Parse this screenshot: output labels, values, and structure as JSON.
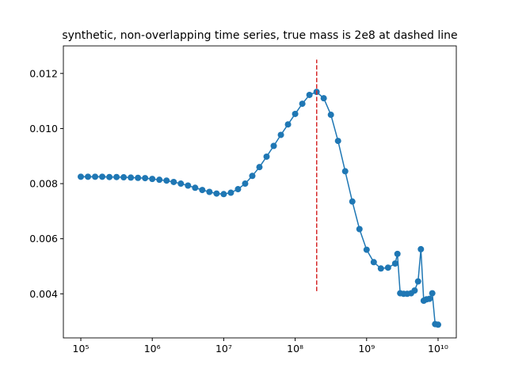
{
  "chart_data": {
    "type": "line",
    "title": "synthetic, non-overlapping time series, true mass is 2e8 at dashed line",
    "x": [
      100000.0,
      125900.0,
      158500.0,
      199500.0,
      251200.0,
      316200.0,
      398100.0,
      501200.0,
      631000.0,
      794300.0,
      1000000.0,
      1259000.0,
      1585000.0,
      1995000.0,
      2512000.0,
      3162000.0,
      3981000.0,
      5012000.0,
      6310000.0,
      7943000.0,
      10000000.0,
      12590000.0,
      15850000.0,
      19950000.0,
      25120000.0,
      31620000.0,
      39810000.0,
      50120000.0,
      63100000.0,
      79430000.0,
      100000000.0,
      125900000.0,
      158500000.0,
      199500000.0,
      251200000.0,
      316200000.0,
      398100000.0,
      501200000.0,
      631000000.0,
      794300000.0,
      1000000000.0,
      1259000000.0,
      1585000000.0,
      1995000000.0,
      2512000000.0,
      2700000000.0,
      2950000000.0,
      3300000000.0,
      3700000000.0,
      4200000000.0,
      4700000000.0,
      5250000000.0,
      5750000000.0,
      6300000000.0,
      6900000000.0,
      7600000000.0,
      8300000000.0,
      9100000000.0,
      10000000000.0
    ],
    "series": [
      {
        "color": "#1f77b4",
        "values": [
          0.00825,
          0.00825,
          0.00825,
          0.00825,
          0.00824,
          0.00824,
          0.00823,
          0.00822,
          0.00821,
          0.0082,
          0.00817,
          0.00814,
          0.00811,
          0.00806,
          0.008,
          0.00793,
          0.00785,
          0.00777,
          0.0077,
          0.00764,
          0.00762,
          0.00767,
          0.0078,
          0.008,
          0.00828,
          0.0086,
          0.00898,
          0.00937,
          0.00977,
          0.01015,
          0.01053,
          0.0109,
          0.01122,
          0.01133,
          0.0111,
          0.0105,
          0.00955,
          0.00845,
          0.00735,
          0.00635,
          0.0056,
          0.00515,
          0.00492,
          0.00495,
          0.0051,
          0.00545,
          0.00402,
          0.004,
          0.004,
          0.00402,
          0.00412,
          0.00445,
          0.00562,
          0.00375,
          0.0038,
          0.00382,
          0.00402,
          0.0029,
          0.00288
        ]
      }
    ],
    "vline": {
      "x": 200000000.0,
      "ymin": 0.0041,
      "ymax": 0.0125,
      "color": "#d62728"
    },
    "xlog": true,
    "xlim": [
      57000,
      18000000000
    ],
    "ylim": [
      0.0024,
      0.013
    ],
    "xticks": [
      {
        "value": 100000.0,
        "label": "10⁵"
      },
      {
        "value": 1000000.0,
        "label": "10⁶"
      },
      {
        "value": 10000000.0,
        "label": "10⁷"
      },
      {
        "value": 100000000.0,
        "label": "10⁸"
      },
      {
        "value": 1000000000.0,
        "label": "10⁹"
      },
      {
        "value": 10000000000.0,
        "label": "10¹⁰"
      }
    ],
    "yticks": [
      0.004,
      0.006,
      0.008,
      {
        "value": 0.01,
        "label": "0.010"
      },
      0.012
    ]
  }
}
